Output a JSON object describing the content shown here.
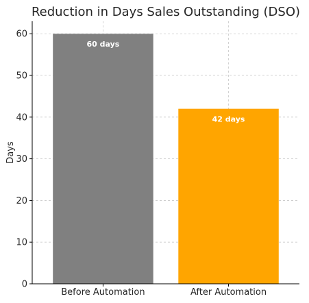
{
  "chart_data": {
    "type": "bar",
    "title": "Reduction in Days Sales Outstanding (DSO)",
    "xlabel": "",
    "ylabel": "Days",
    "categories": [
      "Before Automation",
      "After Automation"
    ],
    "values": [
      60,
      42
    ],
    "data_labels": [
      "60 days",
      "42 days"
    ],
    "colors": [
      "#808080",
      "#FFA500"
    ],
    "ylim": [
      0,
      63
    ],
    "yticks": [
      0,
      10,
      20,
      30,
      40,
      50,
      60
    ],
    "grid": true,
    "legend": "none"
  }
}
